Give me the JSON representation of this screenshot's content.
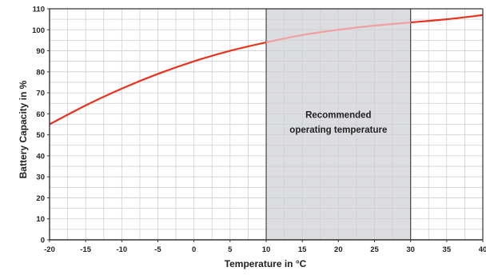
{
  "chart_data": {
    "type": "line",
    "title": "",
    "xlabel": "Temperature in °C",
    "ylabel": "Battery Capacity in %",
    "xlim": [
      -20,
      40
    ],
    "ylim": [
      0,
      110
    ],
    "x_ticks": [
      "-20",
      "-15",
      "-10",
      "-5",
      "0",
      "5",
      "10",
      "15",
      "20",
      "25",
      "30",
      "35",
      "40"
    ],
    "y_ticks": [
      "0",
      "10",
      "20",
      "30",
      "40",
      "50",
      "60",
      "70",
      "80",
      "90",
      "100",
      "110"
    ],
    "grid": true,
    "series": [
      {
        "color": "#e8321e",
        "highlight_color": "#f0a0a0",
        "x": [
          -20,
          -15,
          -10,
          -5,
          0,
          5,
          10,
          15,
          20,
          25,
          30,
          35,
          40
        ],
        "y": [
          55,
          64,
          72,
          79,
          85,
          90,
          94,
          97.5,
          100,
          102,
          103.5,
          105,
          107
        ]
      }
    ],
    "highlight_region": {
      "x_range": [
        10,
        30
      ],
      "color": "#dcdde0",
      "annotation": [
        "Recommended",
        "operating temperature"
      ]
    }
  }
}
